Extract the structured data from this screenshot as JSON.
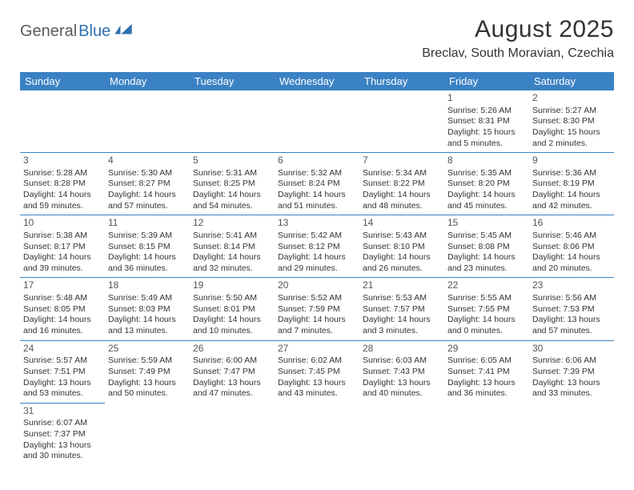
{
  "brand": {
    "part1": "General",
    "part2": "Blue"
  },
  "title": "August 2025",
  "location": "Breclav, South Moravian, Czechia",
  "colors": {
    "header_bg": "#3b82c4",
    "header_text": "#ffffff",
    "border": "#3b82c4",
    "text": "#333333",
    "brand1": "#5a5a5a",
    "brand2": "#2f6fb0"
  },
  "weekdays": [
    "Sunday",
    "Monday",
    "Tuesday",
    "Wednesday",
    "Thursday",
    "Friday",
    "Saturday"
  ],
  "layout": {
    "start_weekday_index": 5,
    "days_in_month": 31
  },
  "days": {
    "1": {
      "sunrise": "5:26 AM",
      "sunset": "8:31 PM",
      "daylight": "15 hours and 5 minutes."
    },
    "2": {
      "sunrise": "5:27 AM",
      "sunset": "8:30 PM",
      "daylight": "15 hours and 2 minutes."
    },
    "3": {
      "sunrise": "5:28 AM",
      "sunset": "8:28 PM",
      "daylight": "14 hours and 59 minutes."
    },
    "4": {
      "sunrise": "5:30 AM",
      "sunset": "8:27 PM",
      "daylight": "14 hours and 57 minutes."
    },
    "5": {
      "sunrise": "5:31 AM",
      "sunset": "8:25 PM",
      "daylight": "14 hours and 54 minutes."
    },
    "6": {
      "sunrise": "5:32 AM",
      "sunset": "8:24 PM",
      "daylight": "14 hours and 51 minutes."
    },
    "7": {
      "sunrise": "5:34 AM",
      "sunset": "8:22 PM",
      "daylight": "14 hours and 48 minutes."
    },
    "8": {
      "sunrise": "5:35 AM",
      "sunset": "8:20 PM",
      "daylight": "14 hours and 45 minutes."
    },
    "9": {
      "sunrise": "5:36 AM",
      "sunset": "8:19 PM",
      "daylight": "14 hours and 42 minutes."
    },
    "10": {
      "sunrise": "5:38 AM",
      "sunset": "8:17 PM",
      "daylight": "14 hours and 39 minutes."
    },
    "11": {
      "sunrise": "5:39 AM",
      "sunset": "8:15 PM",
      "daylight": "14 hours and 36 minutes."
    },
    "12": {
      "sunrise": "5:41 AM",
      "sunset": "8:14 PM",
      "daylight": "14 hours and 32 minutes."
    },
    "13": {
      "sunrise": "5:42 AM",
      "sunset": "8:12 PM",
      "daylight": "14 hours and 29 minutes."
    },
    "14": {
      "sunrise": "5:43 AM",
      "sunset": "8:10 PM",
      "daylight": "14 hours and 26 minutes."
    },
    "15": {
      "sunrise": "5:45 AM",
      "sunset": "8:08 PM",
      "daylight": "14 hours and 23 minutes."
    },
    "16": {
      "sunrise": "5:46 AM",
      "sunset": "8:06 PM",
      "daylight": "14 hours and 20 minutes."
    },
    "17": {
      "sunrise": "5:48 AM",
      "sunset": "8:05 PM",
      "daylight": "14 hours and 16 minutes."
    },
    "18": {
      "sunrise": "5:49 AM",
      "sunset": "8:03 PM",
      "daylight": "14 hours and 13 minutes."
    },
    "19": {
      "sunrise": "5:50 AM",
      "sunset": "8:01 PM",
      "daylight": "14 hours and 10 minutes."
    },
    "20": {
      "sunrise": "5:52 AM",
      "sunset": "7:59 PM",
      "daylight": "14 hours and 7 minutes."
    },
    "21": {
      "sunrise": "5:53 AM",
      "sunset": "7:57 PM",
      "daylight": "14 hours and 3 minutes."
    },
    "22": {
      "sunrise": "5:55 AM",
      "sunset": "7:55 PM",
      "daylight": "14 hours and 0 minutes."
    },
    "23": {
      "sunrise": "5:56 AM",
      "sunset": "7:53 PM",
      "daylight": "13 hours and 57 minutes."
    },
    "24": {
      "sunrise": "5:57 AM",
      "sunset": "7:51 PM",
      "daylight": "13 hours and 53 minutes."
    },
    "25": {
      "sunrise": "5:59 AM",
      "sunset": "7:49 PM",
      "daylight": "13 hours and 50 minutes."
    },
    "26": {
      "sunrise": "6:00 AM",
      "sunset": "7:47 PM",
      "daylight": "13 hours and 47 minutes."
    },
    "27": {
      "sunrise": "6:02 AM",
      "sunset": "7:45 PM",
      "daylight": "13 hours and 43 minutes."
    },
    "28": {
      "sunrise": "6:03 AM",
      "sunset": "7:43 PM",
      "daylight": "13 hours and 40 minutes."
    },
    "29": {
      "sunrise": "6:05 AM",
      "sunset": "7:41 PM",
      "daylight": "13 hours and 36 minutes."
    },
    "30": {
      "sunrise": "6:06 AM",
      "sunset": "7:39 PM",
      "daylight": "13 hours and 33 minutes."
    },
    "31": {
      "sunrise": "6:07 AM",
      "sunset": "7:37 PM",
      "daylight": "13 hours and 30 minutes."
    }
  },
  "labels": {
    "sunrise": "Sunrise:",
    "sunset": "Sunset:",
    "daylight": "Daylight:"
  }
}
